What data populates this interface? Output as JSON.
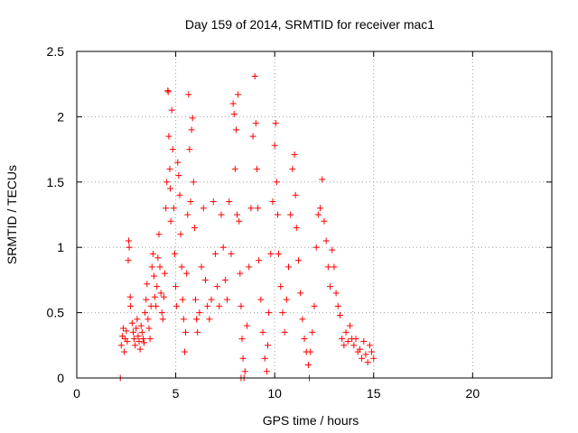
{
  "chart_data": {
    "type": "scatter",
    "title": "Day 159 of 2014, SRMTID for receiver mac1",
    "xlabel": "GPS time / hours",
    "ylabel": "SRMTID / TECUs",
    "xlim": [
      0,
      24
    ],
    "ylim": [
      0,
      2.5
    ],
    "xticks": [
      0,
      5,
      10,
      15,
      20
    ],
    "yticks": [
      0,
      0.5,
      1,
      1.5,
      2,
      2.5
    ],
    "ytick_labels": [
      "0",
      "0.5",
      "1",
      "1.5",
      "2",
      "2.5"
    ],
    "grid": true,
    "marker": "+",
    "colors": {
      "points": "#ff0000",
      "grid": "#a0a0a0",
      "axes": "#000000"
    },
    "series": [
      {
        "values": [
          [
            2.2,
            0.0
          ],
          [
            8.3,
            0.0
          ],
          [
            8.45,
            0.0
          ],
          [
            11.75,
            0.0
          ],
          [
            2.25,
            0.25
          ],
          [
            2.3,
            0.32
          ],
          [
            2.35,
            0.38
          ],
          [
            2.4,
            0.2
          ],
          [
            2.45,
            0.3
          ],
          [
            2.5,
            0.36
          ],
          [
            2.55,
            0.28
          ],
          [
            2.6,
            0.9
          ],
          [
            2.62,
            1.05
          ],
          [
            2.65,
            1.0
          ],
          [
            2.7,
            0.62
          ],
          [
            2.72,
            0.55
          ],
          [
            2.8,
            0.42
          ],
          [
            2.85,
            0.35
          ],
          [
            2.9,
            0.3
          ],
          [
            2.95,
            0.25
          ],
          [
            3.0,
            0.38
          ],
          [
            3.05,
            0.45
          ],
          [
            3.1,
            0.32
          ],
          [
            3.15,
            0.28
          ],
          [
            3.2,
            0.22
          ],
          [
            3.25,
            0.4
          ],
          [
            3.3,
            0.35
          ],
          [
            3.35,
            0.3
          ],
          [
            3.4,
            0.27
          ],
          [
            3.45,
            0.5
          ],
          [
            3.5,
            0.6
          ],
          [
            3.55,
            0.72
          ],
          [
            3.6,
            0.45
          ],
          [
            3.65,
            0.38
          ],
          [
            3.7,
            0.3
          ],
          [
            3.75,
            0.55
          ],
          [
            3.8,
            0.85
          ],
          [
            3.85,
            0.95
          ],
          [
            3.9,
            0.78
          ],
          [
            3.95,
            0.62
          ],
          [
            4.0,
            0.55
          ],
          [
            4.05,
            0.7
          ],
          [
            4.1,
            0.92
          ],
          [
            4.15,
            1.1
          ],
          [
            4.2,
            0.85
          ],
          [
            4.25,
            0.65
          ],
          [
            4.3,
            0.5
          ],
          [
            4.35,
            0.45
          ],
          [
            4.4,
            0.62
          ],
          [
            4.45,
            0.8
          ],
          [
            4.5,
            1.3
          ],
          [
            4.55,
            1.5
          ],
          [
            4.6,
            2.2
          ],
          [
            4.62,
            2.19
          ],
          [
            4.65,
            1.85
          ],
          [
            4.7,
            1.6
          ],
          [
            4.72,
            1.45
          ],
          [
            4.75,
            1.2
          ],
          [
            4.8,
            2.05
          ],
          [
            4.85,
            1.75
          ],
          [
            4.9,
            1.3
          ],
          [
            4.95,
            0.95
          ],
          [
            5.0,
            0.7
          ],
          [
            5.05,
            0.55
          ],
          [
            5.1,
            1.65
          ],
          [
            5.15,
            1.55
          ],
          [
            5.2,
            1.4
          ],
          [
            5.25,
            1.1
          ],
          [
            5.3,
            0.85
          ],
          [
            5.35,
            0.6
          ],
          [
            5.4,
            0.45
          ],
          [
            5.45,
            0.2
          ],
          [
            5.5,
            0.35
          ],
          [
            5.55,
            0.8
          ],
          [
            5.6,
            1.25
          ],
          [
            5.65,
            2.17
          ],
          [
            5.7,
            1.75
          ],
          [
            5.75,
            1.35
          ],
          [
            5.8,
            1.9
          ],
          [
            5.85,
            1.99
          ],
          [
            5.9,
            1.5
          ],
          [
            5.95,
            1.15
          ],
          [
            6.0,
            0.6
          ],
          [
            6.05,
            0.45
          ],
          [
            6.1,
            0.35
          ],
          [
            6.2,
            0.5
          ],
          [
            6.3,
            0.85
          ],
          [
            6.4,
            1.3
          ],
          [
            6.5,
            0.75
          ],
          [
            6.6,
            0.55
          ],
          [
            6.7,
            0.45
          ],
          [
            6.8,
            0.6
          ],
          [
            6.9,
            1.35
          ],
          [
            7.0,
            0.95
          ],
          [
            7.1,
            0.7
          ],
          [
            7.2,
            0.55
          ],
          [
            7.3,
            1.25
          ],
          [
            7.4,
            1.0
          ],
          [
            7.5,
            0.75
          ],
          [
            7.6,
            0.6
          ],
          [
            7.7,
            1.35
          ],
          [
            7.8,
            0.95
          ],
          [
            7.9,
            2.1
          ],
          [
            7.95,
            2.02
          ],
          [
            8.0,
            1.6
          ],
          [
            8.05,
            1.9
          ],
          [
            8.1,
            1.25
          ],
          [
            8.15,
            2.17
          ],
          [
            8.2,
            1.2
          ],
          [
            8.25,
            0.8
          ],
          [
            8.3,
            0.55
          ],
          [
            8.35,
            0.3
          ],
          [
            8.4,
            0.15
          ],
          [
            8.5,
            0.05
          ],
          [
            8.6,
            0.4
          ],
          [
            8.7,
            0.85
          ],
          [
            8.8,
            1.3
          ],
          [
            8.9,
            1.85
          ],
          [
            9.0,
            2.31
          ],
          [
            9.05,
            1.95
          ],
          [
            9.1,
            1.6
          ],
          [
            9.15,
            1.3
          ],
          [
            9.2,
            0.9
          ],
          [
            9.3,
            0.6
          ],
          [
            9.4,
            0.35
          ],
          [
            9.5,
            0.15
          ],
          [
            9.6,
            0.05
          ],
          [
            9.65,
            0.25
          ],
          [
            9.7,
            0.5
          ],
          [
            9.8,
            0.95
          ],
          [
            9.9,
            1.35
          ],
          [
            10.0,
            1.78
          ],
          [
            10.05,
            1.95
          ],
          [
            10.1,
            1.5
          ],
          [
            10.15,
            1.25
          ],
          [
            10.2,
            0.95
          ],
          [
            10.3,
            0.7
          ],
          [
            10.4,
            0.5
          ],
          [
            10.5,
            0.35
          ],
          [
            10.6,
            0.6
          ],
          [
            10.7,
            0.85
          ],
          [
            10.8,
            1.25
          ],
          [
            10.9,
            1.6
          ],
          [
            11.0,
            1.71
          ],
          [
            11.05,
            1.4
          ],
          [
            11.1,
            1.15
          ],
          [
            11.2,
            0.9
          ],
          [
            11.3,
            0.65
          ],
          [
            11.4,
            0.45
          ],
          [
            11.5,
            0.3
          ],
          [
            11.6,
            0.2
          ],
          [
            11.7,
            0.1
          ],
          [
            11.8,
            0.2
          ],
          [
            11.9,
            0.35
          ],
          [
            12.0,
            0.55
          ],
          [
            12.1,
            1.0
          ],
          [
            12.2,
            1.25
          ],
          [
            12.3,
            1.3
          ],
          [
            12.4,
            1.52
          ],
          [
            12.5,
            1.2
          ],
          [
            12.6,
            1.05
          ],
          [
            12.7,
            0.85
          ],
          [
            12.8,
            0.7
          ],
          [
            12.9,
            0.98
          ],
          [
            13.0,
            0.85
          ],
          [
            13.1,
            0.65
          ],
          [
            13.2,
            0.55
          ],
          [
            13.3,
            0.48
          ],
          [
            13.4,
            0.3
          ],
          [
            13.5,
            0.25
          ],
          [
            13.6,
            0.35
          ],
          [
            13.7,
            0.28
          ],
          [
            13.8,
            0.4
          ],
          [
            13.9,
            0.3
          ],
          [
            14.0,
            0.25
          ],
          [
            14.1,
            0.3
          ],
          [
            14.2,
            0.2
          ],
          [
            14.3,
            0.22
          ],
          [
            14.4,
            0.15
          ],
          [
            14.5,
            0.28
          ],
          [
            14.6,
            0.18
          ],
          [
            14.7,
            0.12
          ],
          [
            14.8,
            0.25
          ],
          [
            14.9,
            0.2
          ],
          [
            15.0,
            0.15
          ]
        ]
      }
    ]
  }
}
